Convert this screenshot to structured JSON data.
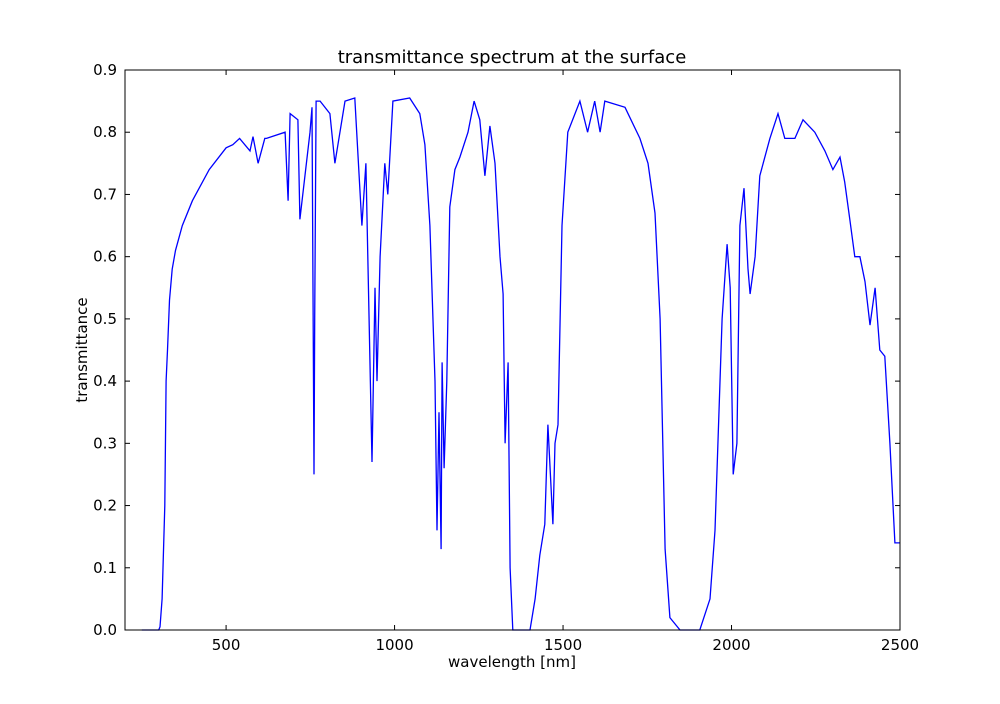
{
  "chart_data": {
    "type": "line",
    "title": "transmittance spectrum at the surface",
    "xlabel": "wavelength [nm]",
    "ylabel": "transmittance",
    "xlim": [
      200,
      2500
    ],
    "ylim": [
      0,
      0.9
    ],
    "xticks": [
      500,
      1000,
      1500,
      2000,
      2500
    ],
    "yticks": [
      0.0,
      0.1,
      0.2,
      0.3,
      0.4,
      0.5,
      0.6,
      0.7,
      0.8,
      0.9
    ],
    "ytick_labels": [
      "0.0",
      "0.1",
      "0.2",
      "0.3",
      "0.4",
      "0.5",
      "0.6",
      "0.7",
      "0.8",
      "0.9"
    ],
    "grid": false,
    "line_color": "#0000ff",
    "series": [
      {
        "x": [
          250,
          300,
          304,
          310,
          318,
          322,
          326,
          332,
          340,
          350,
          370,
          400,
          450,
          500,
          520,
          540,
          580,
          620,
          571,
          595,
          615,
          675,
          684,
          690,
          713,
          719,
          749,
          755,
          761,
          763,
          767,
          779,
          808,
          823,
          853,
          882,
          903,
          915,
          933,
          942,
          948,
          957,
          971,
          980,
          995,
          1045,
          1075,
          1090,
          1105,
          1120,
          1126,
          1132,
          1138,
          1141,
          1147,
          1155,
          1164,
          1179,
          1194,
          1218,
          1236,
          1253,
          1268,
          1283,
          1298,
          1313,
          1322,
          1328,
          1337,
          1343,
          1351,
          1402,
          1417,
          1431,
          1446,
          1455,
          1470,
          1476,
          1485,
          1497,
          1514,
          1550,
          1573,
          1594,
          1610,
          1624,
          1684,
          1728,
          1752,
          1773,
          1788,
          1803,
          1817,
          1847,
          1906,
          1936,
          1951,
          1972,
          1987,
          1996,
          2005,
          2016,
          2025,
          2037,
          2049,
          2055,
          2070,
          2084,
          2114,
          2138,
          2158,
          2188,
          2212,
          2247,
          2277,
          2301,
          2322,
          2336,
          2351,
          2366,
          2381,
          2396,
          2411,
          2426,
          2440,
          2455,
          2470,
          2485,
          2500
        ],
        "y": [
          0,
          0,
          0.005,
          0.05,
          0.2,
          0.4,
          0.45,
          0.53,
          0.58,
          0.61,
          0.65,
          0.69,
          0.74,
          0.775,
          0.78,
          0.79,
          0.793,
          0.79,
          0.77,
          0.75,
          0.79,
          0.8,
          0.69,
          0.83,
          0.82,
          0.66,
          0.8,
          0.84,
          0.25,
          0.5,
          0.85,
          0.85,
          0.83,
          0.75,
          0.85,
          0.855,
          0.65,
          0.75,
          0.27,
          0.55,
          0.4,
          0.6,
          0.75,
          0.7,
          0.85,
          0.855,
          0.83,
          0.78,
          0.65,
          0.4,
          0.16,
          0.35,
          0.13,
          0.43,
          0.26,
          0.4,
          0.68,
          0.74,
          0.76,
          0.8,
          0.85,
          0.82,
          0.73,
          0.81,
          0.75,
          0.6,
          0.54,
          0.3,
          0.43,
          0.1,
          0.0,
          0.0,
          0.05,
          0.12,
          0.17,
          0.33,
          0.17,
          0.3,
          0.33,
          0.65,
          0.8,
          0.85,
          0.8,
          0.85,
          0.8,
          0.85,
          0.84,
          0.79,
          0.75,
          0.67,
          0.5,
          0.13,
          0.02,
          0,
          0,
          0.05,
          0.16,
          0.5,
          0.62,
          0.55,
          0.25,
          0.3,
          0.65,
          0.71,
          0.58,
          0.54,
          0.6,
          0.73,
          0.79,
          0.83,
          0.79,
          0.79,
          0.82,
          0.8,
          0.77,
          0.74,
          0.76,
          0.72,
          0.66,
          0.6,
          0.6,
          0.56,
          0.49,
          0.55,
          0.45,
          0.44,
          0.3,
          0.14,
          0.14
        ]
      }
    ]
  }
}
